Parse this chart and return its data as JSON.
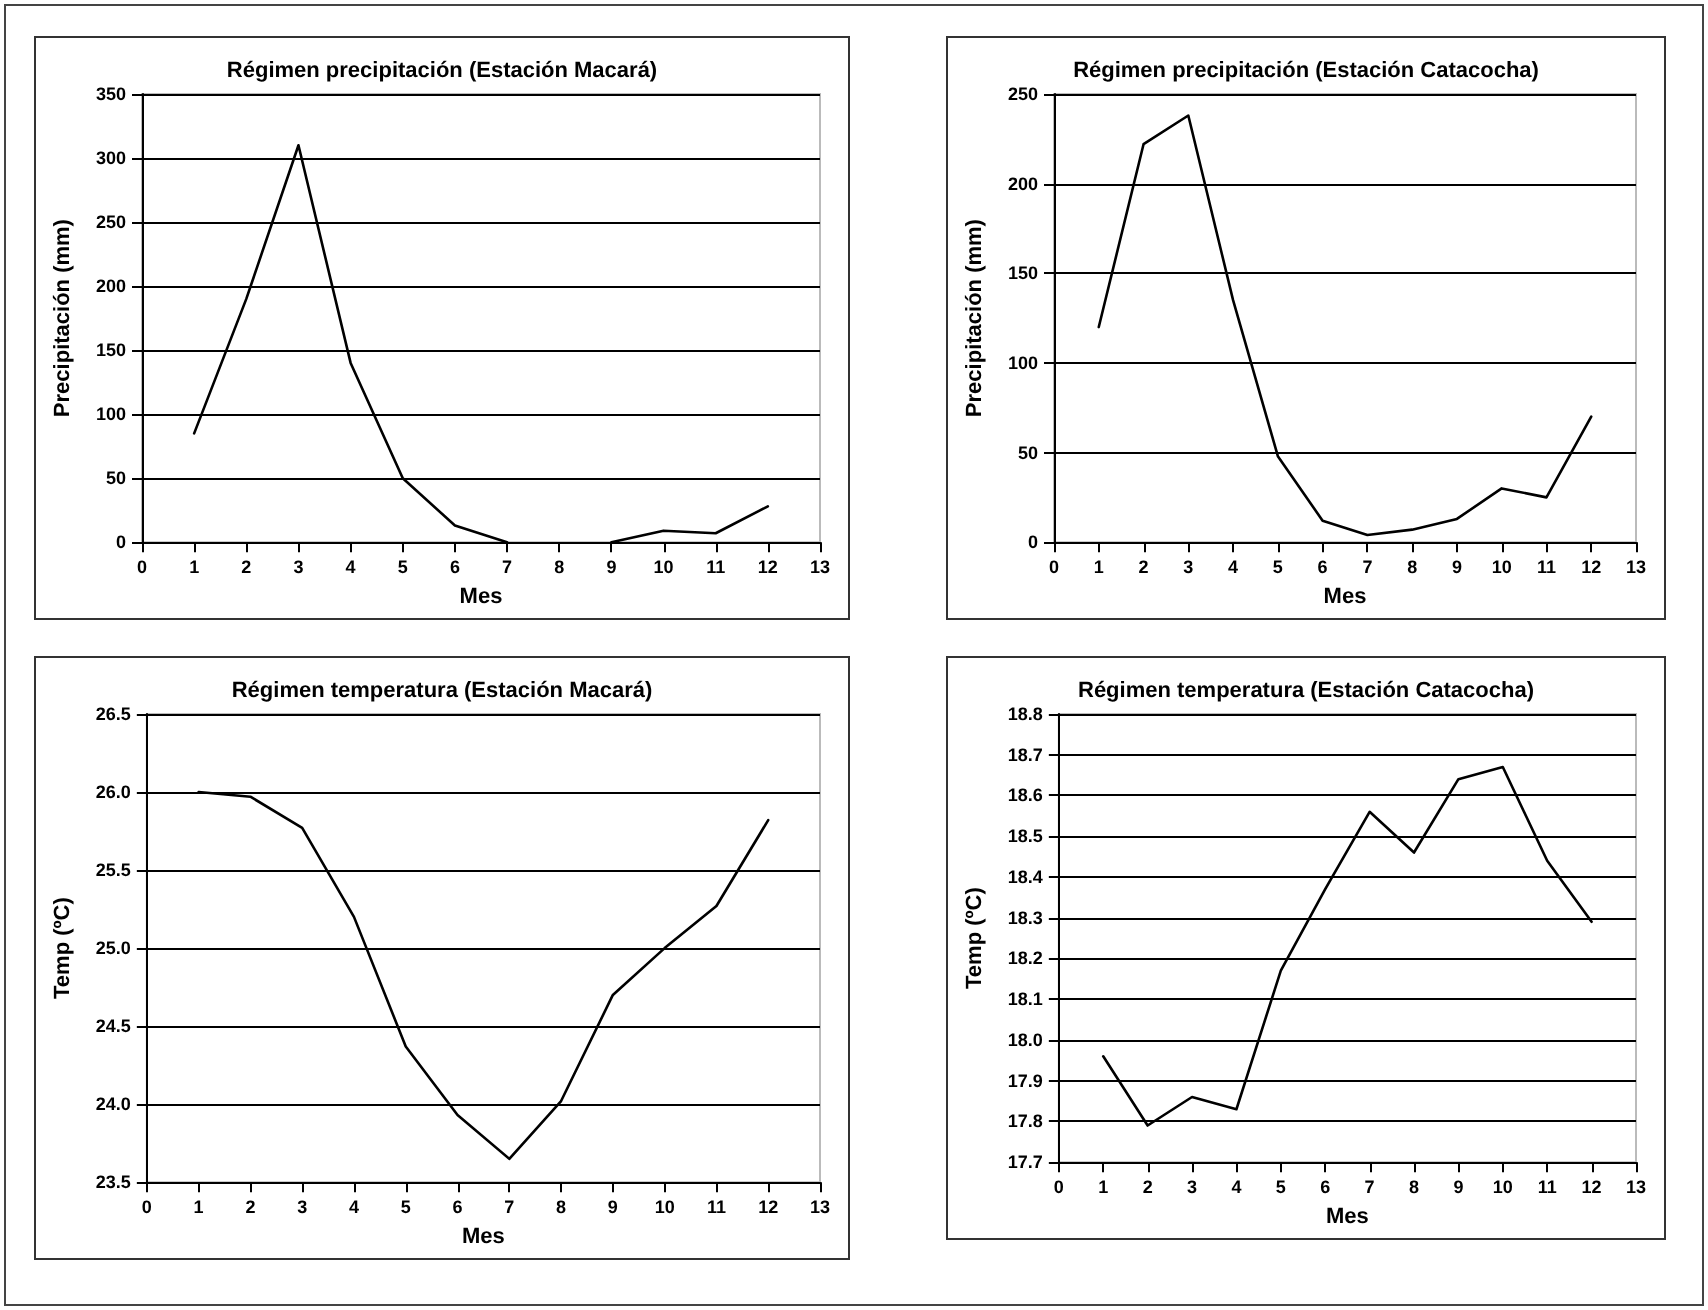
{
  "chart_data": [
    {
      "type": "line",
      "title": "Régimen precipitación (Estación Macará)",
      "xlabel": "Mes",
      "ylabel": "Precipitación (mm)",
      "x": [
        1,
        2,
        3,
        4,
        5,
        6,
        7,
        8,
        9,
        10,
        11,
        12
      ],
      "series": [
        {
          "color": "#000000",
          "values": [
            85,
            190,
            310,
            140,
            50,
            13,
            0,
            null,
            0,
            9,
            7,
            28
          ]
        }
      ],
      "xlim": [
        0,
        13
      ],
      "xticks": [
        0,
        1,
        2,
        3,
        4,
        5,
        6,
        7,
        8,
        9,
        10,
        11,
        12,
        13
      ],
      "ylim": [
        0,
        350
      ],
      "yticks": [
        0,
        50,
        100,
        150,
        200,
        250,
        300,
        350
      ],
      "grid": "y",
      "marker": "none",
      "line_style": "solid"
    },
    {
      "type": "line",
      "title": "Régimen precipitación (Estación Catacocha)",
      "xlabel": "Mes",
      "ylabel": "Precipitación (mm)",
      "x": [
        1,
        2,
        3,
        4,
        5,
        6,
        7,
        8,
        9,
        10,
        11,
        12
      ],
      "series": [
        {
          "color": "#000000",
          "values": [
            120,
            222,
            238,
            135,
            48,
            12,
            4,
            7,
            13,
            30,
            25,
            70
          ]
        }
      ],
      "xlim": [
        0,
        13
      ],
      "xticks": [
        0,
        1,
        2,
        3,
        4,
        5,
        6,
        7,
        8,
        9,
        10,
        11,
        12,
        13
      ],
      "ylim": [
        0,
        250
      ],
      "yticks": [
        0,
        50,
        100,
        150,
        200,
        250
      ],
      "grid": "y",
      "marker": "none",
      "line_style": "solid"
    },
    {
      "type": "line",
      "title": "Régimen temperatura (Estación Macará)",
      "xlabel": "Mes",
      "ylabel": "Temp (ºC)",
      "x": [
        1,
        2,
        3,
        4,
        5,
        6,
        7,
        8,
        9,
        10,
        11,
        12
      ],
      "series": [
        {
          "color": "#000000",
          "values": [
            26.0,
            25.97,
            25.77,
            25.2,
            24.37,
            23.93,
            23.65,
            24.02,
            24.7,
            25.0,
            25.27,
            25.82
          ]
        }
      ],
      "xlim": [
        0,
        13
      ],
      "xticks": [
        0,
        1,
        2,
        3,
        4,
        5,
        6,
        7,
        8,
        9,
        10,
        11,
        12,
        13
      ],
      "ylim": [
        23.5,
        26.5
      ],
      "yticks": [
        23.5,
        {
          "value": 24,
          "label": "24.0"
        },
        24.5,
        {
          "value": 25,
          "label": "25.0"
        },
        25.5,
        {
          "value": 26,
          "label": "26.0"
        },
        26.5
      ],
      "grid": "y",
      "marker": "none",
      "line_style": "solid"
    },
    {
      "type": "line",
      "title": "Régimen temperatura (Estación Catacocha)",
      "xlabel": "Mes",
      "ylabel": "Temp (ºC)",
      "x": [
        1,
        2,
        3,
        4,
        5,
        6,
        7,
        8,
        9,
        10,
        11,
        12
      ],
      "series": [
        {
          "color": "#000000",
          "values": [
            17.96,
            17.79,
            17.86,
            17.83,
            18.17,
            18.37,
            18.56,
            18.46,
            18.64,
            18.67,
            18.44,
            18.29
          ]
        }
      ],
      "xlim": [
        0,
        13
      ],
      "xticks": [
        0,
        1,
        2,
        3,
        4,
        5,
        6,
        7,
        8,
        9,
        10,
        11,
        12,
        13
      ],
      "ylim": [
        17.7,
        18.8
      ],
      "yticks": [
        17.7,
        17.8,
        17.9,
        {
          "value": 18,
          "label": "18.0"
        },
        18.1,
        18.2,
        18.3,
        18.4,
        18.5,
        18.6,
        18.7,
        18.8
      ],
      "grid": "y",
      "marker": "none",
      "line_style": "solid"
    }
  ]
}
